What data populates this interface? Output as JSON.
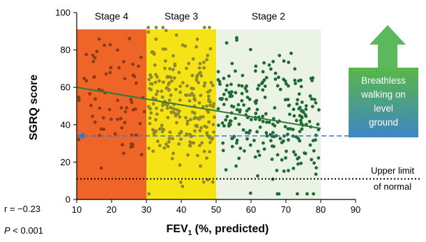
{
  "chart_data": {
    "type": "scatter",
    "xlabel_main": "FEV",
    "xlabel_sub": "1",
    "xlabel_rest": " (%, predicted)",
    "ylabel": "SGRQ score",
    "xlim": [
      10,
      90
    ],
    "ylim": [
      0,
      100
    ],
    "xticks": [
      "10",
      "20",
      "30",
      "40",
      "50",
      "60",
      "70",
      "80",
      "90"
    ],
    "yticks": [
      "0",
      "20",
      "40",
      "60",
      "80",
      "100"
    ],
    "stages": [
      {
        "label": "Stage 4",
        "from": 10,
        "to": 30,
        "fill": "#ee6527",
        "point_color": "#8c3a1a"
      },
      {
        "label": "Stage 3",
        "from": 30,
        "to": 50,
        "fill": "#f5e316",
        "point_color": "#8e8a2c"
      },
      {
        "label": "Stage 2",
        "from": 50,
        "to": 80,
        "fill": "#eaf3e4",
        "point_color": "#1f6b36"
      }
    ],
    "regression": {
      "x": [
        10,
        80
      ],
      "y": [
        60,
        38
      ],
      "color": "#2f7a3a"
    },
    "normal_limit": {
      "y": 11,
      "label_line1": "Upper limit",
      "label_line2": "of normal"
    },
    "breathless_line": {
      "y": 34,
      "color": "#3b73c8"
    },
    "breathless_box": {
      "lines": [
        "Breathless",
        "walking on",
        "level",
        "ground"
      ],
      "color_top": "#58b847",
      "color_bottom": "#3f86c5"
    },
    "arrow_color": "#5cb85c",
    "stats": {
      "r": "r = −0.23",
      "p_italic": "P",
      "p_rest": " < 0.001"
    },
    "n_points": {
      "stage4": 70,
      "stage3": 230,
      "stage2": 250
    }
  }
}
